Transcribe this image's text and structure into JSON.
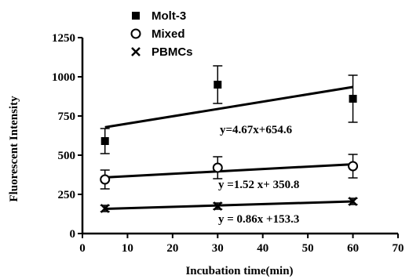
{
  "chart_data": {
    "type": "scatter",
    "title": "",
    "xlabel": "Incubation time(min)",
    "ylabel": "Fluorescent Intensity",
    "xlim": [
      0,
      70
    ],
    "ylim": [
      0,
      1250
    ],
    "xticks": [
      "0",
      "10",
      "20",
      "30",
      "40",
      "50",
      "60",
      "70"
    ],
    "yticks": [
      "0",
      "250",
      "500",
      "750",
      "1000",
      "1250"
    ],
    "grid": false,
    "legend_position": "top-left",
    "series": [
      {
        "name": "Molt-3",
        "marker": "filled-square",
        "x": [
          5,
          30,
          60
        ],
        "y": [
          590,
          950,
          860
        ],
        "err": [
          80,
          120,
          150
        ],
        "fit": {
          "slope": 4.67,
          "intercept": 654.6,
          "label": "y=4.67x+654.6"
        }
      },
      {
        "name": "Mixed",
        "marker": "open-circle",
        "x": [
          5,
          30,
          60
        ],
        "y": [
          345,
          420,
          430
        ],
        "err": [
          60,
          70,
          75
        ],
        "fit": {
          "slope": 1.52,
          "intercept": 350.8,
          "label": "y =1.52 x+ 350.8"
        }
      },
      {
        "name": "PBMCs",
        "marker": "x",
        "x": [
          5,
          30,
          60
        ],
        "y": [
          160,
          175,
          205
        ],
        "err": [
          20,
          20,
          20
        ],
        "fit": {
          "slope": 0.86,
          "intercept": 153.3,
          "label": "y = 0.86x +153.3"
        }
      }
    ]
  }
}
